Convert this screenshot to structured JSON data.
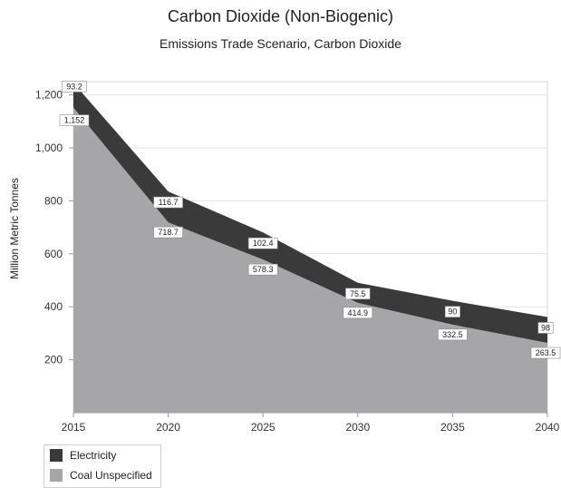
{
  "chart_data": {
    "type": "area",
    "stacked": true,
    "title": "Carbon Dioxide (Non-Biogenic)",
    "subtitle": "Emissions Trade Scenario, Carbon Dioxide",
    "xlabel": "",
    "ylabel": "Million Metric Tonnes",
    "x": [
      2015,
      2020,
      2025,
      2030,
      2035,
      2040
    ],
    "xlim": [
      2015,
      2040
    ],
    "ylim": [
      0,
      1200
    ],
    "yticks": [
      200,
      400,
      600,
      800,
      1000,
      1200
    ],
    "ytick_labels": [
      "200",
      "400",
      "600",
      "800",
      "1,000",
      "1,200"
    ],
    "grid": true,
    "legend_position": "bottom-left",
    "series": [
      {
        "name": "Coal Unspecified",
        "color": "#a6a6a9",
        "values": [
          1152,
          718.7,
          578.3,
          414.9,
          332.5,
          263.5
        ],
        "labels": [
          "1,152",
          "718.7",
          "578.3",
          "414.9",
          "332.5",
          "263.5"
        ]
      },
      {
        "name": "Electricity",
        "color": "#3a3a3a",
        "values": [
          93.2,
          116.7,
          102.4,
          75.5,
          90,
          98
        ],
        "labels": [
          "93.2",
          "116.7",
          "102.4",
          "75.5",
          "90",
          "98"
        ]
      }
    ]
  }
}
